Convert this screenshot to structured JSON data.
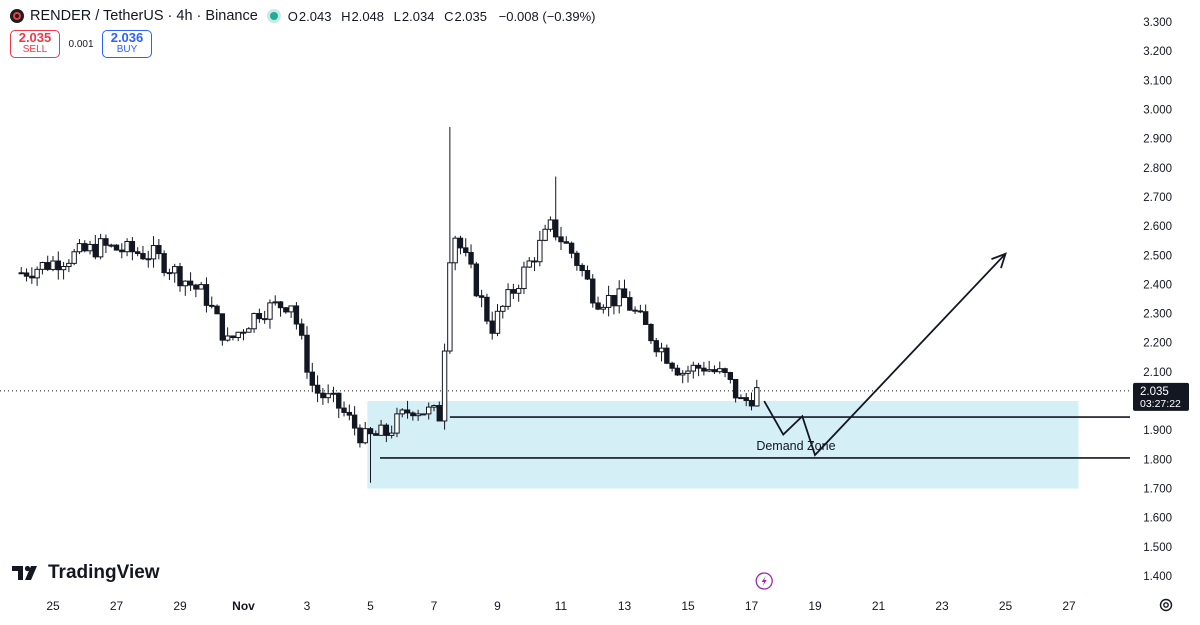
{
  "header": {
    "symbol_title": "RENDER / TetherUS · 4h · Binance",
    "ohlc": {
      "open_label": "O",
      "open": "2.043",
      "high_label": "H",
      "high": "2.048",
      "low_label": "L",
      "low": "2.034",
      "close_label": "C",
      "close": "2.035",
      "change": "−0.008 (−0.39%)"
    }
  },
  "trade": {
    "sell_price": "2.035",
    "sell_label": "SELL",
    "spread": "0.001",
    "buy_price": "2.036",
    "buy_label": "BUY"
  },
  "branding": {
    "logo_text": "TradingView"
  },
  "colors": {
    "up": "#131722",
    "down": "#131722",
    "zone_fill": "#d4f0f6",
    "price_tag_bg": "#131722",
    "sell": "#f23645",
    "buy": "#2962ff",
    "lightning": "#9c27b0"
  },
  "chart_data": {
    "type": "candlestick",
    "ylim": [
      1.35,
      3.35
    ],
    "y_ticks": [
      "3.300",
      "3.200",
      "3.100",
      "3.000",
      "2.900",
      "2.800",
      "2.700",
      "2.600",
      "2.500",
      "2.400",
      "2.300",
      "2.200",
      "2.100",
      "1.900",
      "1.800",
      "1.700",
      "1.600",
      "1.500",
      "1.400"
    ],
    "x_ticks": [
      {
        "label": "25",
        "day": 25
      },
      {
        "label": "27",
        "day": 27
      },
      {
        "label": "29",
        "day": 29
      },
      {
        "label": "Nov",
        "day": 31,
        "bold": true
      },
      {
        "label": "3",
        "day": 33
      },
      {
        "label": "5",
        "day": 35
      },
      {
        "label": "7",
        "day": 37
      },
      {
        "label": "9",
        "day": 39
      },
      {
        "label": "11",
        "day": 41
      },
      {
        "label": "13",
        "day": 43
      },
      {
        "label": "15",
        "day": 45
      },
      {
        "label": "17",
        "day": 47
      },
      {
        "label": "19",
        "day": 49
      },
      {
        "label": "21",
        "day": 51
      },
      {
        "label": "23",
        "day": 53
      },
      {
        "label": "25",
        "day": 55
      },
      {
        "label": "27",
        "day": 57
      }
    ],
    "last_price": "2.035",
    "countdown": "03:27:22",
    "last_value": 2.035,
    "demand_zone": {
      "label": "Demand Zone",
      "top": 2.0,
      "bottom": 1.7,
      "start_day": 34.9,
      "end_day": 57.3,
      "line_upper": 1.945,
      "line_upper_start_day": 37.5,
      "line_lower": 1.805,
      "line_lower_start_day": 35.3
    },
    "projection_path": [
      {
        "day": 47.4,
        "value": 2.0
      },
      {
        "day": 48.0,
        "value": 1.885
      },
      {
        "day": 48.6,
        "value": 1.948
      },
      {
        "day": 49.0,
        "value": 1.815
      },
      {
        "day": 55.0,
        "value": 2.505
      }
    ],
    "anchor_points": [
      {
        "day": 24,
        "value": 2.44
      },
      {
        "day": 26.5,
        "value": 2.53
      },
      {
        "day": 28.2,
        "value": 2.5
      },
      {
        "day": 29.8,
        "value": 2.36
      },
      {
        "day": 30.5,
        "value": 2.2
      },
      {
        "day": 31.5,
        "value": 2.31
      },
      {
        "day": 32.5,
        "value": 2.34
      },
      {
        "day": 33.2,
        "value": 2.04
      },
      {
        "day": 34.0,
        "value": 1.98
      },
      {
        "day": 34.8,
        "value": 1.87
      },
      {
        "day": 35.5,
        "value": 1.89
      },
      {
        "day": 36.3,
        "value": 1.98
      },
      {
        "day": 37.2,
        "value": 1.95
      },
      {
        "day": 37.55,
        "value": 2.6
      },
      {
        "day": 38.2,
        "value": 2.43
      },
      {
        "day": 38.8,
        "value": 2.25
      },
      {
        "day": 39.6,
        "value": 2.4
      },
      {
        "day": 40.7,
        "value": 2.6
      },
      {
        "day": 41.4,
        "value": 2.5
      },
      {
        "day": 42.1,
        "value": 2.35
      },
      {
        "day": 43.0,
        "value": 2.35
      },
      {
        "day": 44.0,
        "value": 2.2
      },
      {
        "day": 44.8,
        "value": 2.1
      },
      {
        "day": 45.5,
        "value": 2.12
      },
      {
        "day": 46.2,
        "value": 2.08
      },
      {
        "day": 46.7,
        "value": 1.99
      },
      {
        "day": 47.2,
        "value": 2.035
      }
    ]
  }
}
